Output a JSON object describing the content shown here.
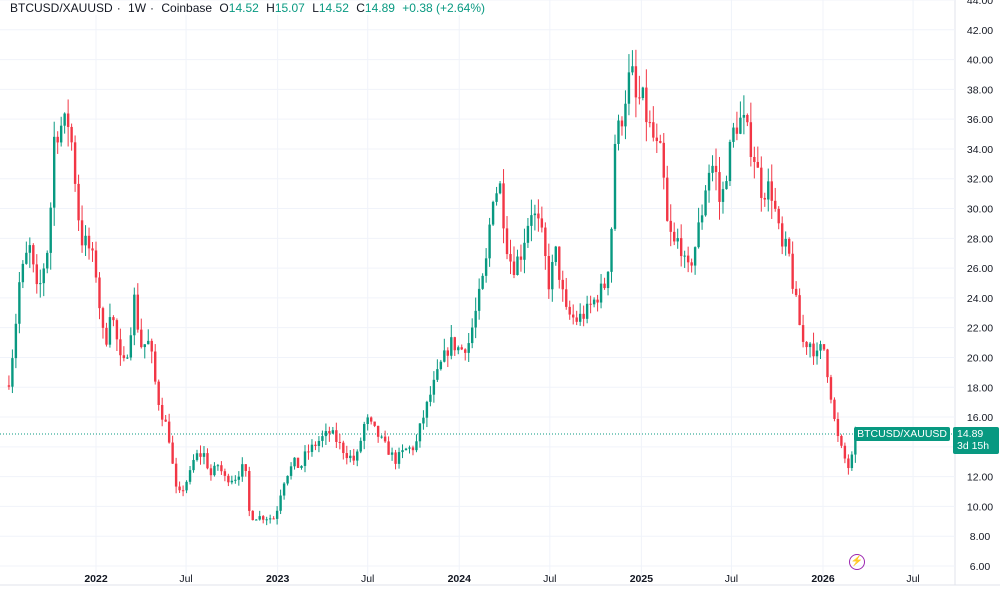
{
  "header": {
    "symbol": "BTCUSD/XAUUSD",
    "interval": "1W",
    "exchange": "Coinbase",
    "open_label": "O",
    "open": "14.52",
    "high_label": "H",
    "high": "15.07",
    "low_label": "L",
    "low": "14.52",
    "close_label": "C",
    "close": "14.89",
    "change": "+0.38 (+2.64%)"
  },
  "price_tag": {
    "series": "BTCUSD/XAUUSD",
    "price": "14.89",
    "countdown": "3d 15h"
  },
  "colors": {
    "up": "#089981",
    "down": "#f23645",
    "grid": "#f0f3fa",
    "accent": "#9c27b0"
  },
  "icons": {
    "bottom": "lightning-icon"
  },
  "chart_data": {
    "type": "candlestick",
    "interval": "weekly",
    "ylim": [
      6,
      44
    ],
    "yticks": [
      "6.00",
      "8.00",
      "10.00",
      "12.00",
      "14.00",
      "16.00",
      "18.00",
      "20.00",
      "22.00",
      "24.00",
      "26.00",
      "28.00",
      "30.00",
      "32.00",
      "34.00",
      "36.00",
      "38.00",
      "40.00",
      "42.00",
      "44.00"
    ],
    "xticks": [
      {
        "label": "2022",
        "date": "2022-01-01",
        "bold": true
      },
      {
        "label": "Jul",
        "date": "2022-07-01"
      },
      {
        "label": "2023",
        "date": "2023-01-01",
        "bold": true
      },
      {
        "label": "Jul",
        "date": "2023-07-01"
      },
      {
        "label": "2024",
        "date": "2024-01-01",
        "bold": true
      },
      {
        "label": "Jul",
        "date": "2024-07-01"
      },
      {
        "label": "2025",
        "date": "2025-01-01",
        "bold": true
      },
      {
        "label": "Jul",
        "date": "2025-07-01"
      },
      {
        "label": "2026",
        "date": "2026-01-01",
        "bold": true
      },
      {
        "label": "Jul",
        "date": "2026-07-01"
      }
    ],
    "grid": true,
    "last": {
      "open": 14.52,
      "high": 15.07,
      "low": 14.52,
      "close": 14.89
    },
    "close_path": [
      [
        "2021-07-10",
        18.5
      ],
      [
        "2021-07-20",
        21
      ],
      [
        "2021-07-31",
        25
      ],
      [
        "2021-08-20",
        27.5
      ],
      [
        "2021-09-06",
        24
      ],
      [
        "2021-09-20",
        26.5
      ],
      [
        "2021-09-30",
        28
      ],
      [
        "2021-10-06",
        34.5
      ],
      [
        "2021-10-20",
        35.5
      ],
      [
        "2021-11-09",
        35.8
      ],
      [
        "2021-11-20",
        32
      ],
      [
        "2021-12-01",
        28
      ],
      [
        "2021-12-16",
        27.5
      ],
      [
        "2021-12-31",
        26
      ],
      [
        "2022-01-09",
        23.2
      ],
      [
        "2022-01-19",
        20.5
      ],
      [
        "2022-01-29",
        23.2
      ],
      [
        "2022-02-08",
        22
      ],
      [
        "2022-02-18",
        19.8
      ],
      [
        "2022-02-28",
        19.5
      ],
      [
        "2022-03-10",
        21.5
      ],
      [
        "2022-03-20",
        24.2
      ],
      [
        "2022-03-30",
        20.8
      ],
      [
        "2022-04-19",
        21
      ],
      [
        "2022-04-29",
        18.5
      ],
      [
        "2022-05-10",
        16.5
      ],
      [
        "2022-05-19",
        15.8
      ],
      [
        "2022-05-30",
        14.3
      ],
      [
        "2022-06-09",
        11.2
      ],
      [
        "2022-06-19",
        10.8
      ],
      [
        "2022-07-09",
        12.2
      ],
      [
        "2022-07-19",
        13.4
      ],
      [
        "2022-08-08",
        13.5
      ],
      [
        "2022-08-18",
        12
      ],
      [
        "2022-09-03",
        12.8
      ],
      [
        "2022-09-17",
        11.9
      ],
      [
        "2022-10-07",
        11.9
      ],
      [
        "2022-10-27",
        12.8
      ],
      [
        "2022-11-06",
        9.3
      ],
      [
        "2022-11-26",
        9.3
      ],
      [
        "2022-12-27",
        9.2
      ],
      [
        "2023-01-06",
        10.8
      ],
      [
        "2023-01-16",
        12
      ],
      [
        "2023-02-05",
        13
      ],
      [
        "2023-02-15",
        12.5
      ],
      [
        "2023-02-26",
        13.5
      ],
      [
        "2023-03-28",
        14.5
      ],
      [
        "2023-04-17",
        15
      ],
      [
        "2023-05-17",
        13.6
      ],
      [
        "2023-06-07",
        13
      ],
      [
        "2023-06-27",
        15.9
      ],
      [
        "2023-07-17",
        15
      ],
      [
        "2023-08-06",
        14
      ],
      [
        "2023-08-26",
        13.1
      ],
      [
        "2023-09-15",
        13.8
      ],
      [
        "2023-10-05",
        14
      ],
      [
        "2023-10-15",
        15.4
      ],
      [
        "2023-11-04",
        17.5
      ],
      [
        "2023-11-25",
        19.5
      ],
      [
        "2023-12-15",
        21
      ],
      [
        "2024-01-04",
        20.5
      ],
      [
        "2024-01-20",
        21
      ],
      [
        "2024-02-03",
        23
      ],
      [
        "2024-02-23",
        26
      ],
      [
        "2024-03-08",
        31
      ],
      [
        "2024-03-24",
        31.5
      ],
      [
        "2024-04-03",
        28
      ],
      [
        "2024-04-17",
        26
      ],
      [
        "2024-05-04",
        27
      ],
      [
        "2024-05-24",
        30
      ],
      [
        "2024-06-13",
        28.5
      ],
      [
        "2024-06-29",
        25
      ],
      [
        "2024-07-13",
        27
      ],
      [
        "2024-08-02",
        23
      ],
      [
        "2024-08-23",
        22.5
      ],
      [
        "2024-09-12",
        23
      ],
      [
        "2024-10-02",
        24
      ],
      [
        "2024-10-22",
        25
      ],
      [
        "2024-11-01",
        28
      ],
      [
        "2024-11-09",
        34.5
      ],
      [
        "2024-11-22",
        36
      ],
      [
        "2024-12-02",
        38
      ],
      [
        "2024-12-12",
        39.3
      ],
      [
        "2024-12-22",
        37
      ],
      [
        "2025-01-02",
        37.5
      ],
      [
        "2025-01-12",
        36
      ],
      [
        "2025-01-22",
        35
      ],
      [
        "2025-02-01",
        34
      ],
      [
        "2025-02-11",
        33.5
      ],
      [
        "2025-02-21",
        29
      ],
      [
        "2025-03-07",
        27.5
      ],
      [
        "2025-03-19",
        28
      ],
      [
        "2025-04-02",
        25.5
      ],
      [
        "2025-04-16",
        27
      ],
      [
        "2025-05-04",
        30
      ],
      [
        "2025-05-14",
        32.5
      ],
      [
        "2025-05-28",
        33
      ],
      [
        "2025-06-09",
        30
      ],
      [
        "2025-06-23",
        33
      ],
      [
        "2025-07-07",
        35.5
      ],
      [
        "2025-07-23",
        36
      ],
      [
        "2025-08-02",
        35
      ],
      [
        "2025-08-16",
        33.5
      ],
      [
        "2025-09-01",
        31
      ],
      [
        "2025-09-11",
        31.5
      ],
      [
        "2025-09-21",
        31
      ],
      [
        "2025-10-01",
        29
      ],
      [
        "2025-10-12",
        27
      ],
      [
        "2025-10-22",
        27.5
      ],
      [
        "2025-11-01",
        25
      ],
      [
        "2025-11-11",
        23
      ],
      [
        "2025-11-21",
        21
      ],
      [
        "2025-12-07",
        21
      ],
      [
        "2025-12-21",
        20
      ],
      [
        "2026-01-01",
        21
      ],
      [
        "2026-01-15",
        18
      ],
      [
        "2026-01-27",
        15
      ],
      [
        "2026-02-10",
        13.5
      ],
      [
        "2026-02-24",
        12.4
      ],
      [
        "2026-03-06",
        14.52
      ],
      [
        "2026-03-14",
        14.89
      ]
    ]
  }
}
